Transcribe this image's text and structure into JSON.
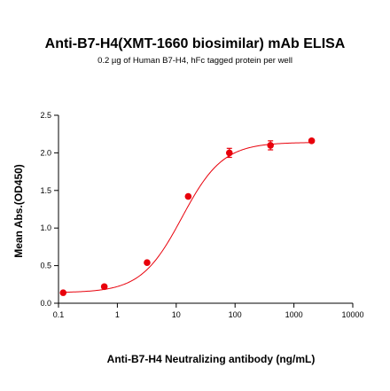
{
  "chart_data": {
    "type": "scatter",
    "title": "Anti-B7-H4(XMT-1660 biosimilar) mAb ELISA",
    "subtitle": "0.2 µg of Human B7-H4, hFc tagged protein per well",
    "xlabel": "Anti-B7-H4 Neutralizing antibody  (ng/mL)",
    "ylabel": "Mean Abs.(OD450)",
    "x_scale": "log",
    "xlim": [
      0.1,
      10000
    ],
    "ylim": [
      0,
      2.5
    ],
    "x_ticks": [
      "0.1",
      "1",
      "10",
      "100",
      "1000",
      "10000"
    ],
    "y_ticks": [
      "0.0",
      "0.5",
      "1.0",
      "1.5",
      "2.0",
      "2.5"
    ],
    "series": [
      {
        "x": [
          0.12,
          0.6,
          3.2,
          16,
          80,
          400,
          2000
        ],
        "y": [
          0.14,
          0.22,
          0.54,
          1.42,
          2.0,
          2.1,
          2.16
        ],
        "error": [
          0.015,
          0.02,
          0.02,
          0.02,
          0.06,
          0.06,
          0.02
        ],
        "color": "#e8000b"
      }
    ],
    "fit": {
      "bottom": 0.14,
      "top": 2.14,
      "ec50": 12.5,
      "hill": 1.25
    }
  }
}
